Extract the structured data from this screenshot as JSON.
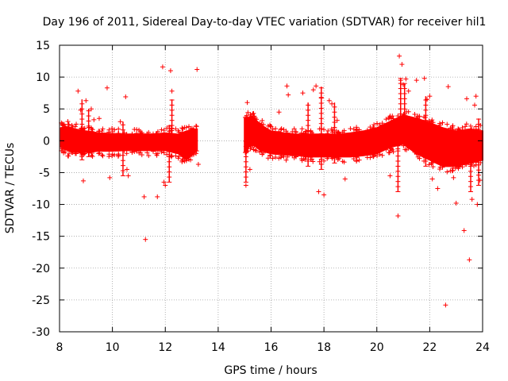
{
  "chart_data": {
    "type": "scatter",
    "title": "Day 196 of 2011, Sidereal Day-to-day VTEC variation (SDTVAR) for receiver hil1",
    "xlabel": "GPS time / hours",
    "ylabel": "SDTVAR / TECUs",
    "xlim": [
      8,
      24
    ],
    "ylim": [
      -30,
      15
    ],
    "x_ticks": [
      8,
      10,
      12,
      14,
      16,
      18,
      20,
      22,
      24
    ],
    "y_ticks": [
      -30,
      -25,
      -20,
      -15,
      -10,
      -5,
      0,
      5,
      10,
      15
    ],
    "x_tick_labels": [
      "8",
      "10",
      "12",
      "14",
      "16",
      "18",
      "20",
      "22",
      "24"
    ],
    "y_tick_labels": [
      "-30",
      "-25",
      "-20",
      "-15",
      "-10",
      "-5",
      "0",
      "5",
      "10",
      "15"
    ],
    "grid": true,
    "marker": "+",
    "color": "#ff0000",
    "dense_band": {
      "x": [
        8.05,
        8.3,
        8.6,
        9.0,
        9.5,
        10.0,
        10.5,
        11.0,
        11.5,
        12.0,
        12.5,
        12.8,
        13.2,
        15.0,
        15.3,
        15.6,
        16.0,
        16.5,
        17.0,
        17.5,
        18.0,
        18.5,
        19.0,
        19.5,
        20.0,
        20.5,
        21.0,
        21.5,
        22.0,
        22.5,
        23.0,
        23.5,
        24.0
      ],
      "upper": [
        2.0,
        2.2,
        1.8,
        1.5,
        1.2,
        1.1,
        1.0,
        1.0,
        1.0,
        1.2,
        1.0,
        1.5,
        1.8,
        3.5,
        3.8,
        2.5,
        1.5,
        1.2,
        1.0,
        1.0,
        1.0,
        1.0,
        1.2,
        1.5,
        2.0,
        3.0,
        4.0,
        3.5,
        2.8,
        2.0,
        1.5,
        1.8,
        1.5
      ],
      "lower": [
        -1.0,
        -1.5,
        -1.8,
        -1.8,
        -1.6,
        -1.6,
        -1.5,
        -1.5,
        -1.5,
        -1.5,
        -2.0,
        -3.0,
        -1.5,
        -1.5,
        -0.5,
        -1.5,
        -2.0,
        -2.2,
        -2.3,
        -2.5,
        -2.5,
        -2.5,
        -2.5,
        -2.3,
        -2.0,
        -1.0,
        -0.5,
        -2.0,
        -3.0,
        -4.0,
        -4.0,
        -3.5,
        -3.0
      ],
      "x_gap": [
        13.3,
        15.0
      ]
    },
    "outliers": {
      "x": [
        8.7,
        8.8,
        8.9,
        9.0,
        9.2,
        9.3,
        9.5,
        9.8,
        9.9,
        10.3,
        10.5,
        10.55,
        10.6,
        11.2,
        11.25,
        11.7,
        11.9,
        11.95,
        12.0,
        12.2,
        12.25,
        13.2,
        13.25,
        15.05,
        15.1,
        15.2,
        16.0,
        16.3,
        16.6,
        16.65,
        17.2,
        17.6,
        17.7,
        17.8,
        17.9,
        18.0,
        18.2,
        18.3,
        18.5,
        18.8,
        19.0,
        20.5,
        20.8,
        20.85,
        20.9,
        20.95,
        21.0,
        21.1,
        21.2,
        21.5,
        21.8,
        21.9,
        22.0,
        22.1,
        22.3,
        22.6,
        22.7,
        22.9,
        23.0,
        23.3,
        23.4,
        23.5,
        23.6,
        23.7,
        23.75,
        23.8,
        23.9
      ],
      "y": [
        7.8,
        4.8,
        -6.3,
        6.3,
        5.0,
        3.3,
        3.5,
        8.3,
        -5.8,
        3.0,
        6.9,
        -4.5,
        -5.5,
        -8.8,
        -15.5,
        -8.8,
        11.6,
        -6.5,
        -7.0,
        11.0,
        7.8,
        11.2,
        -3.7,
        -7.0,
        6.0,
        -4.5,
        2.2,
        4.5,
        8.6,
        7.2,
        7.5,
        8.0,
        8.6,
        -8.0,
        6.8,
        -8.5,
        6.3,
        5.8,
        3.2,
        -6.0,
        1.9,
        -5.5,
        -11.8,
        13.3,
        9.5,
        12.0,
        8.8,
        9.7,
        7.8,
        9.5,
        9.8,
        6.5,
        7.0,
        -6.0,
        -7.5,
        -25.8,
        8.5,
        -5.8,
        -9.8,
        -14.1,
        6.6,
        -18.7,
        -9.2,
        5.6,
        7.0,
        -10.0,
        -6.2
      ]
    },
    "spikes": [
      {
        "x": 8.85,
        "low": -3.0,
        "high": 6.5
      },
      {
        "x": 9.1,
        "low": -2.5,
        "high": 5.0
      },
      {
        "x": 10.4,
        "low": -5.5,
        "high": 3.0
      },
      {
        "x": 12.15,
        "low": -6.5,
        "high": 2.5
      },
      {
        "x": 12.25,
        "low": 0.0,
        "high": 6.5
      },
      {
        "x": 15.05,
        "low": -6.5,
        "high": 0.0
      },
      {
        "x": 17.4,
        "low": -4.0,
        "high": 6.0
      },
      {
        "x": 17.9,
        "low": -4.5,
        "high": 8.5
      },
      {
        "x": 18.4,
        "low": -3.5,
        "high": 6.0
      },
      {
        "x": 20.8,
        "low": -8.0,
        "high": 2.0
      },
      {
        "x": 20.9,
        "low": 1.0,
        "high": 9.8
      },
      {
        "x": 21.05,
        "low": 1.0,
        "high": 9.0
      },
      {
        "x": 21.85,
        "low": -4.0,
        "high": 7.0
      },
      {
        "x": 23.55,
        "low": -8.0,
        "high": 2.0
      },
      {
        "x": 23.85,
        "low": -7.0,
        "high": 3.5
      }
    ]
  }
}
